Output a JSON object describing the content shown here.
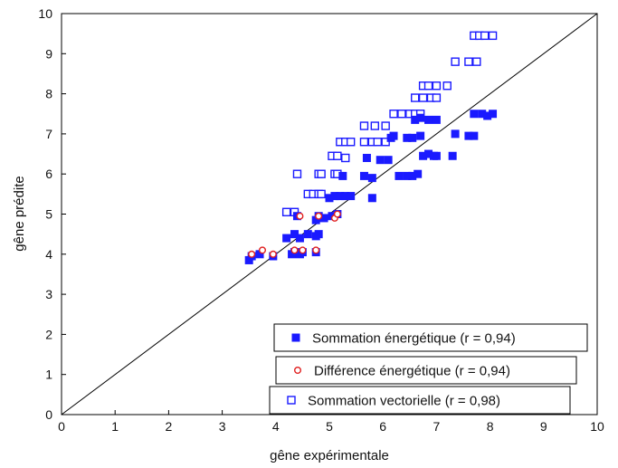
{
  "chart_data": {
    "type": "scatter",
    "xlabel": "gêne expérimentale",
    "ylabel": "gêne prédite",
    "xlim": [
      0,
      10
    ],
    "ylim": [
      0,
      10
    ],
    "x_ticks": [
      "0",
      "1",
      "2",
      "3",
      "4",
      "5",
      "6",
      "7",
      "8",
      "9",
      "10"
    ],
    "y_ticks": [
      "0",
      "1",
      "2",
      "3",
      "4",
      "5",
      "6",
      "7",
      "8",
      "9",
      "10"
    ],
    "reference_line": {
      "from": [
        0,
        0
      ],
      "to": [
        10,
        10
      ]
    },
    "grid": false,
    "legend_placement": "bottom-right",
    "series": [
      {
        "name": "Sommation énergétique (r = 0,94)",
        "marker": "filled-square",
        "color": "#1a1aff",
        "points": [
          [
            3.5,
            3.85
          ],
          [
            3.55,
            3.95
          ],
          [
            3.7,
            4.0
          ],
          [
            3.95,
            3.95
          ],
          [
            4.3,
            4.0
          ],
          [
            4.35,
            4.05
          ],
          [
            4.45,
            4.0
          ],
          [
            4.5,
            4.05
          ],
          [
            4.75,
            4.05
          ],
          [
            4.2,
            4.4
          ],
          [
            4.35,
            4.5
          ],
          [
            4.45,
            4.4
          ],
          [
            4.6,
            4.5
          ],
          [
            4.75,
            4.45
          ],
          [
            4.8,
            4.5
          ],
          [
            4.4,
            4.95
          ],
          [
            4.75,
            4.85
          ],
          [
            4.8,
            4.95
          ],
          [
            4.9,
            4.9
          ],
          [
            5.05,
            4.95
          ],
          [
            5.15,
            5.0
          ],
          [
            5.0,
            5.4
          ],
          [
            5.1,
            5.45
          ],
          [
            5.2,
            5.45
          ],
          [
            5.3,
            5.45
          ],
          [
            5.4,
            5.45
          ],
          [
            5.8,
            5.4
          ],
          [
            5.25,
            5.95
          ],
          [
            5.65,
            5.95
          ],
          [
            5.8,
            5.9
          ],
          [
            6.3,
            5.95
          ],
          [
            6.45,
            5.95
          ],
          [
            6.55,
            5.95
          ],
          [
            6.65,
            6.0
          ],
          [
            5.7,
            6.4
          ],
          [
            5.95,
            6.35
          ],
          [
            6.1,
            6.35
          ],
          [
            6.15,
            6.9
          ],
          [
            6.2,
            6.95
          ],
          [
            6.45,
            6.9
          ],
          [
            6.55,
            6.9
          ],
          [
            6.7,
            6.95
          ],
          [
            6.75,
            6.45
          ],
          [
            6.85,
            6.5
          ],
          [
            6.95,
            6.45
          ],
          [
            7.0,
            6.45
          ],
          [
            7.3,
            6.45
          ],
          [
            6.6,
            7.35
          ],
          [
            6.7,
            7.4
          ],
          [
            6.85,
            7.35
          ],
          [
            7.0,
            7.35
          ],
          [
            7.35,
            7.0
          ],
          [
            7.6,
            6.95
          ],
          [
            7.7,
            6.95
          ],
          [
            7.7,
            7.5
          ],
          [
            7.85,
            7.5
          ],
          [
            7.95,
            7.45
          ],
          [
            8.05,
            7.5
          ]
        ]
      },
      {
        "name": "Différence énergétique (r = 0,94)",
        "marker": "open-circle",
        "color": "#e02020",
        "points": [
          [
            3.55,
            4.0
          ],
          [
            3.75,
            4.1
          ],
          [
            3.95,
            4.0
          ],
          [
            4.35,
            4.1
          ],
          [
            4.5,
            4.1
          ],
          [
            4.75,
            4.1
          ],
          [
            4.45,
            4.95
          ],
          [
            4.8,
            4.95
          ],
          [
            5.1,
            4.9
          ],
          [
            5.15,
            5.0
          ]
        ]
      },
      {
        "name": "Sommation vectorielle (r = 0,98)",
        "marker": "open-square",
        "color": "#1a1aff",
        "points": [
          [
            4.2,
            5.05
          ],
          [
            4.35,
            5.05
          ],
          [
            4.4,
            6.0
          ],
          [
            4.6,
            5.5
          ],
          [
            4.7,
            5.5
          ],
          [
            4.8,
            5.5
          ],
          [
            4.85,
            5.5
          ],
          [
            4.8,
            6.0
          ],
          [
            4.85,
            6.0
          ],
          [
            5.1,
            6.0
          ],
          [
            5.15,
            6.0
          ],
          [
            5.05,
            6.45
          ],
          [
            5.15,
            6.45
          ],
          [
            5.3,
            6.4
          ],
          [
            5.2,
            6.8
          ],
          [
            5.3,
            6.8
          ],
          [
            5.4,
            6.8
          ],
          [
            5.65,
            6.8
          ],
          [
            5.8,
            6.8
          ],
          [
            5.9,
            6.8
          ],
          [
            6.05,
            6.8
          ],
          [
            5.65,
            7.2
          ],
          [
            5.85,
            7.2
          ],
          [
            6.05,
            7.2
          ],
          [
            6.2,
            7.5
          ],
          [
            6.35,
            7.5
          ],
          [
            6.5,
            7.5
          ],
          [
            6.6,
            7.5
          ],
          [
            6.7,
            7.5
          ],
          [
            6.6,
            7.9
          ],
          [
            6.75,
            7.9
          ],
          [
            6.9,
            7.9
          ],
          [
            7.0,
            7.9
          ],
          [
            6.75,
            8.2
          ],
          [
            6.85,
            8.2
          ],
          [
            7.0,
            8.2
          ],
          [
            7.2,
            8.2
          ],
          [
            7.35,
            8.8
          ],
          [
            7.6,
            8.8
          ],
          [
            7.75,
            8.8
          ],
          [
            7.7,
            9.45
          ],
          [
            7.8,
            9.45
          ],
          [
            7.9,
            9.45
          ],
          [
            8.05,
            9.45
          ]
        ]
      }
    ]
  }
}
